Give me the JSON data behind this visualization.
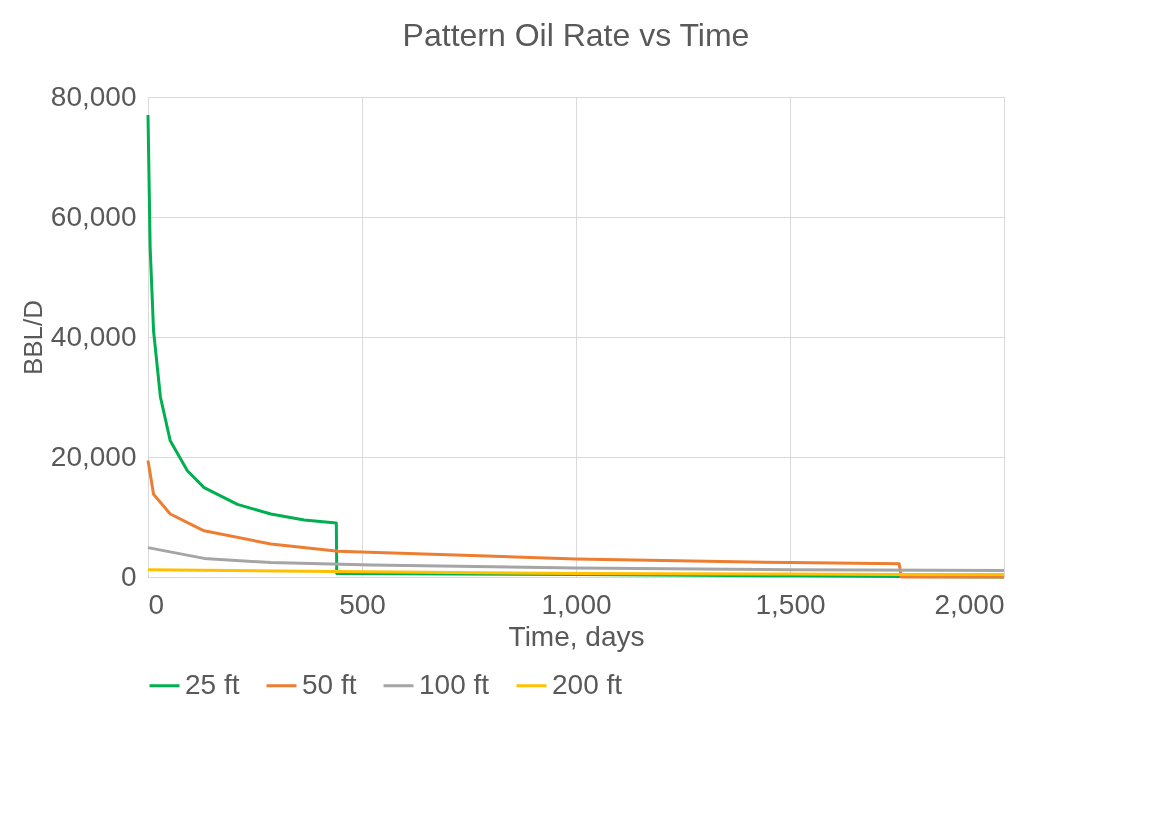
{
  "chart_data": {
    "type": "line",
    "title": "Pattern Oil Rate vs Time",
    "xlabel": "Time, days",
    "ylabel": "BBL/D",
    "xlim": [
      0,
      2000
    ],
    "xticks": [
      0,
      500,
      {
        "value": 1000,
        "label": "1,000"
      },
      {
        "value": 1500,
        "label": "1,500"
      },
      {
        "value": 2000,
        "label": "2,000"
      }
    ],
    "ylim": [
      0,
      80000
    ],
    "yticks": [
      0,
      {
        "value": 20000,
        "label": "20,000"
      },
      {
        "value": 40000,
        "label": "40,000"
      },
      {
        "value": 60000,
        "label": "60,000"
      },
      {
        "value": 80000,
        "label": "80,000"
      }
    ],
    "grid": true,
    "legend": "bottom",
    "marker": "none",
    "line_style": "solid",
    "series": [
      {
        "name": "25 ft",
        "color": "#00b050",
        "x": [
          0,
          5,
          13,
          29,
          52,
          92,
          131,
          209,
          287,
          365,
          440,
          441,
          1000,
          1500,
          1760,
          2000
        ],
        "values": [
          77000,
          55000,
          41000,
          30000,
          22700,
          17700,
          14900,
          12100,
          10500,
          9500,
          9000,
          600,
          400,
          200,
          100,
          0
        ]
      },
      {
        "name": "50 ft",
        "color": "#ed7d31",
        "x": [
          0,
          13,
          52,
          131,
          287,
          444,
          1000,
          1500,
          1755,
          1760,
          2000
        ],
        "values": [
          19400,
          13800,
          10500,
          7700,
          5500,
          4300,
          3000,
          2400,
          2200,
          0,
          0
        ]
      },
      {
        "name": "100 ft",
        "color": "#a5a5a5",
        "x": [
          0,
          131,
          287,
          522,
          1000,
          1500,
          2000
        ],
        "values": [
          4900,
          3100,
          2400,
          2000,
          1500,
          1200,
          1100
        ]
      },
      {
        "name": "200 ft",
        "color": "#ffc000",
        "x": [
          0,
          440,
          1000,
          1500,
          1760,
          2000
        ],
        "values": [
          1200,
          900,
          600,
          500,
          400,
          400
        ]
      }
    ]
  }
}
